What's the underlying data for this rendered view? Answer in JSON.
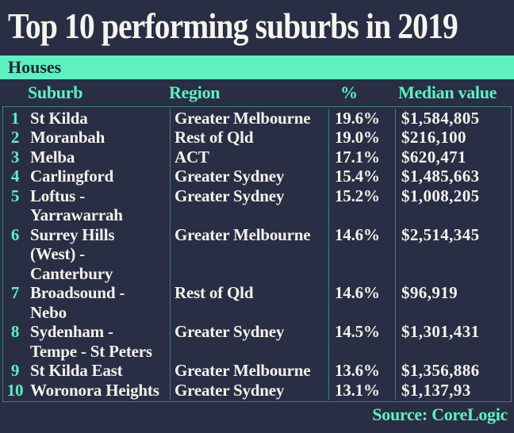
{
  "chart_data": {
    "type": "table",
    "title": "Top 10 performing suburbs in 2019",
    "section": "Houses",
    "columns": [
      "Suburb",
      "Region",
      "%",
      "Median value"
    ],
    "rows": [
      {
        "rank": "1",
        "suburb": "St Kilda",
        "region": "Greater Melbourne",
        "percent": "19.6%",
        "median": "$1,584,805"
      },
      {
        "rank": "2",
        "suburb": "Moranbah",
        "region": "Rest of Qld",
        "percent": "19.0%",
        "median": "$216,100"
      },
      {
        "rank": "3",
        "suburb": "Melba",
        "region": "ACT",
        "percent": "17.1%",
        "median": "$620,471"
      },
      {
        "rank": "4",
        "suburb": "Carlingford",
        "region": "Greater Sydney",
        "percent": "15.4%",
        "median": "$1,485,663"
      },
      {
        "rank": "5",
        "suburb": "Loftus -\nYarrawarrah",
        "region": "Greater Sydney",
        "percent": "15.2%",
        "median": "$1,008,205"
      },
      {
        "rank": "6",
        "suburb": "Surrey Hills\n(West) -\nCanterbury",
        "region": "Greater Melbourne",
        "percent": "14.6%",
        "median": "$2,514,345"
      },
      {
        "rank": "7",
        "suburb": "Broadsound -\nNebo",
        "region": "Rest of Qld",
        "percent": "14.6%",
        "median": "$96,919"
      },
      {
        "rank": "8",
        "suburb": "Sydenham -\nTempe - St Peters",
        "region": "Greater Sydney",
        "percent": "14.5%",
        "median": "$1,301,431"
      },
      {
        "rank": "9",
        "suburb": "St Kilda East",
        "region": "Greater Melbourne",
        "percent": "13.6%",
        "median": "$1,356,886"
      },
      {
        "rank": "10",
        "suburb": "Woronora Heights",
        "region": "Greater Sydney",
        "percent": "13.1%",
        "median": "$1,137,93"
      }
    ],
    "source": "Source: CoreLogic"
  },
  "colors": {
    "background": "#292e45",
    "accent_teal": "#5df1c0",
    "row_text": "#f4f2ec",
    "section_bar_text": "#1f2439",
    "table_border": "#3c8274"
  }
}
